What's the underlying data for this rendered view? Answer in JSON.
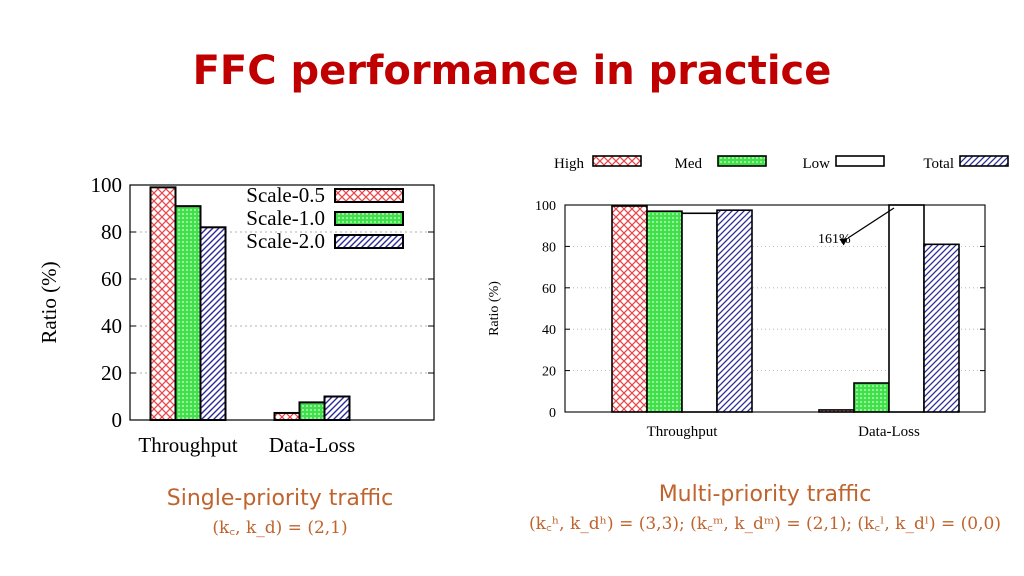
{
  "slide": {
    "title": "FFC performance in practice"
  },
  "captions": {
    "left_main": "Single-priority traffic",
    "left_sub": "(k꜀, k_d) = (2,1)",
    "right_main": "Multi-priority traffic",
    "right_sub": "(k꜀ʰ, k_dʰ) = (3,3); (k꜀ᵐ, k_dᵐ) = (2,1); (k꜀ˡ, k_dˡ) = (0,0)"
  },
  "colors": {
    "title": "#c00000",
    "caption": "#c0632c",
    "red_hatch": "#e8474a",
    "green_fill": "#3fe04a",
    "blue_hatch": "#2a2a9c"
  },
  "chart_data": [
    {
      "type": "bar",
      "categories": [
        "Throughput",
        "Data-Loss"
      ],
      "series": [
        {
          "name": "Scale-0.5",
          "values": [
            99,
            3
          ]
        },
        {
          "name": "Scale-1.0",
          "values": [
            91,
            7.5
          ]
        },
        {
          "name": "Scale-2.0",
          "values": [
            82,
            10
          ]
        }
      ],
      "xlabel": "",
      "ylabel": "Ratio (%)",
      "ylim": [
        0,
        100
      ],
      "yticks": [
        "0",
        "20",
        "40",
        "60",
        "80",
        "100"
      ],
      "grid": true,
      "legend": "top-right"
    },
    {
      "type": "bar",
      "categories": [
        "Throughput",
        "Data-Loss"
      ],
      "series": [
        {
          "name": "High",
          "values": [
            99.5,
            1
          ]
        },
        {
          "name": "Med",
          "values": [
            97,
            14
          ]
        },
        {
          "name": "Low",
          "values": [
            96,
            100
          ]
        },
        {
          "name": "Total",
          "values": [
            97.5,
            81
          ]
        }
      ],
      "xlabel": "",
      "ylabel": "Ratio (%)",
      "ylim": [
        0,
        100
      ],
      "yticks": [
        "0",
        "20",
        "40",
        "60",
        "80",
        "100"
      ],
      "grid": true,
      "legend": "top",
      "annotation": "161%"
    }
  ]
}
